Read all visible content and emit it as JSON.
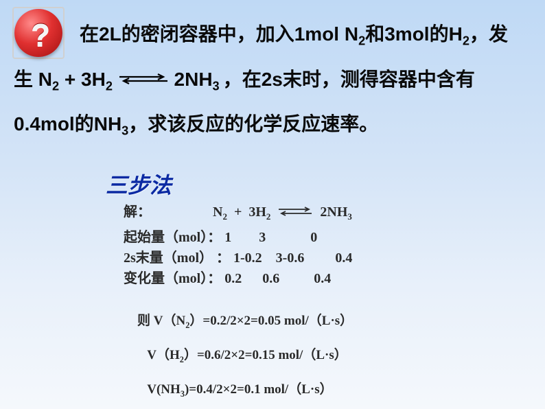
{
  "icon": {
    "glyph": "?"
  },
  "problem": {
    "text_html": "在<b>2L</b>的密闭容器中，加入<b>1mol N<sub>2</sub></b>和<b>3mol</b>的<b>H<sub>2</sub></b>，发生 <b>N<sub>2</sub> + 3H<sub>2</sub></b> <svg class='eq-arrow' width='74' height='18'><line x1='2' y1='6' x2='66' y2='6' stroke='#000' stroke-width='2.2'/><polyline points='58,2 66,6 58,10' fill='none' stroke='#000' stroke-width='2.2'/><line x1='8' y1='12' x2='72' y2='12' stroke='#000' stroke-width='2.2'/><polyline points='16,8 8,12 16,16' fill='none' stroke='#000' stroke-width='2.2'/></svg> <b>2NH<sub>3 </sub></b>，在<b>2s</b>末时，测得容器中含有<b>0.4mol</b>的<b>NH<sub>3</sub></b>，求该反应的化学反应速率。"
  },
  "method_label": "三步法",
  "solution": {
    "header": "解：&nbsp;&nbsp;&nbsp;&nbsp;&nbsp;&nbsp;&nbsp;&nbsp;&nbsp;&nbsp;&nbsp;&nbsp;&nbsp;&nbsp;&nbsp;&nbsp;&nbsp;&nbsp;N<sub>2</sub>&nbsp;&nbsp;+&nbsp;&nbsp;3H<sub>2</sub>&nbsp;&nbsp;<svg class='small-arrow' width='52' height='14'><line x1='2' y1='4' x2='46' y2='4' stroke='#2a2a2a' stroke-width='1.8'/><polyline points='40,1 46,4 40,7' fill='none' stroke='#2a2a2a' stroke-width='1.8'/><line x1='6' y1='10' x2='50' y2='10' stroke='#2a2a2a' stroke-width='1.8'/><polyline points='12,7 6,10 12,13' fill='none' stroke='#2a2a2a' stroke-width='1.8'/></svg>&nbsp;&nbsp;2NH<sub>3</sub>",
    "row1": "起始量（mol）：&nbsp;1&nbsp;&nbsp;&nbsp;&nbsp;&nbsp;&nbsp;&nbsp;&nbsp;3&nbsp;&nbsp;&nbsp;&nbsp;&nbsp;&nbsp;&nbsp;&nbsp;&nbsp;&nbsp;&nbsp;&nbsp;&nbsp;0",
    "row2": "2s末量（mol）&nbsp;：&nbsp;1-0.2&nbsp;&nbsp;&nbsp;&nbsp;3-0.6&nbsp;&nbsp;&nbsp;&nbsp;&nbsp;&nbsp;&nbsp;&nbsp;&nbsp;0.4",
    "row3": "变化量（mol）：&nbsp;0.2&nbsp;&nbsp;&nbsp;&nbsp;&nbsp;&nbsp;0.6&nbsp;&nbsp;&nbsp;&nbsp;&nbsp;&nbsp;&nbsp;&nbsp;&nbsp;&nbsp;0.4"
  },
  "results": {
    "line1": "则&nbsp;V（N<sub>2</sub>）=0.2/2×2=0.05 mol/（L·s）",
    "line2": "&nbsp;&nbsp;&nbsp;V（H<sub>2</sub>）=0.6/2×2=0.15 mol/（L·s）",
    "line3": "&nbsp;&nbsp;&nbsp;V(NH<sub>3</sub>)=0.4/2×2=0.1 mol/（L·s）"
  },
  "colors": {
    "bg_top": "#bfd9f5",
    "bg_bottom": "#f5f8fc",
    "method_color": "#0b2aa3",
    "text_color": "#0a0a0a",
    "solution_color": "#2a2a2a",
    "disc_red": "#d42020"
  },
  "fontsizes": {
    "problem": 28,
    "method": 32,
    "solution": 20,
    "results": 19
  }
}
